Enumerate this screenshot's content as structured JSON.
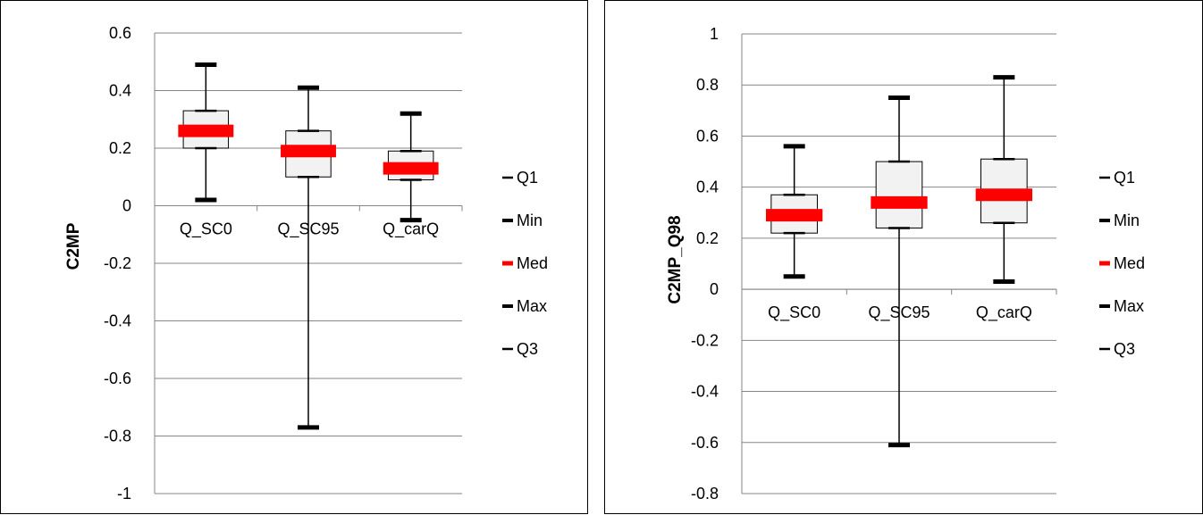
{
  "chart_data": [
    {
      "type": "box",
      "title": "",
      "xlabel": "",
      "ylabel": "C2MP",
      "ylim": [
        -1,
        0.6
      ],
      "yticks": [
        "0.6",
        "0.4",
        "0.2",
        "0",
        "-0.2",
        "-0.4",
        "-0.6",
        "-0.8",
        "-1"
      ],
      "categories": [
        "Q_SC0",
        "Q_SC95",
        "Q_carQ"
      ],
      "series": [
        {
          "name": "Q1",
          "values": [
            0.2,
            0.1,
            0.09
          ]
        },
        {
          "name": "Min",
          "values": [
            0.02,
            -0.77,
            -0.05
          ]
        },
        {
          "name": "Med",
          "values": [
            0.26,
            0.19,
            0.13
          ]
        },
        {
          "name": "Max",
          "values": [
            0.49,
            0.41,
            0.32
          ]
        },
        {
          "name": "Q3",
          "values": [
            0.33,
            0.26,
            0.19
          ]
        }
      ],
      "grid": true,
      "legend": "right"
    },
    {
      "type": "box",
      "title": "",
      "xlabel": "",
      "ylabel": "C2MP_Q98",
      "ylim": [
        -0.8,
        1
      ],
      "yticks": [
        "1",
        "0.8",
        "0.6",
        "0.4",
        "0.2",
        "0",
        "-0.2",
        "-0.4",
        "-0.6",
        "-0.8"
      ],
      "categories": [
        "Q_SC0",
        "Q_SC95",
        "Q_carQ"
      ],
      "series": [
        {
          "name": "Q1",
          "values": [
            0.22,
            0.24,
            0.26
          ]
        },
        {
          "name": "Min",
          "values": [
            0.05,
            -0.61,
            0.03
          ]
        },
        {
          "name": "Med",
          "values": [
            0.29,
            0.34,
            0.37
          ]
        },
        {
          "name": "Max",
          "values": [
            0.56,
            0.75,
            0.83
          ]
        },
        {
          "name": "Q3",
          "values": [
            0.37,
            0.5,
            0.51
          ]
        }
      ],
      "grid": true,
      "legend": "right"
    }
  ],
  "colors": {
    "median": "#ff0000",
    "whisker": "#000000",
    "box_fill": "#f2f2f2",
    "grid": "#868686"
  }
}
